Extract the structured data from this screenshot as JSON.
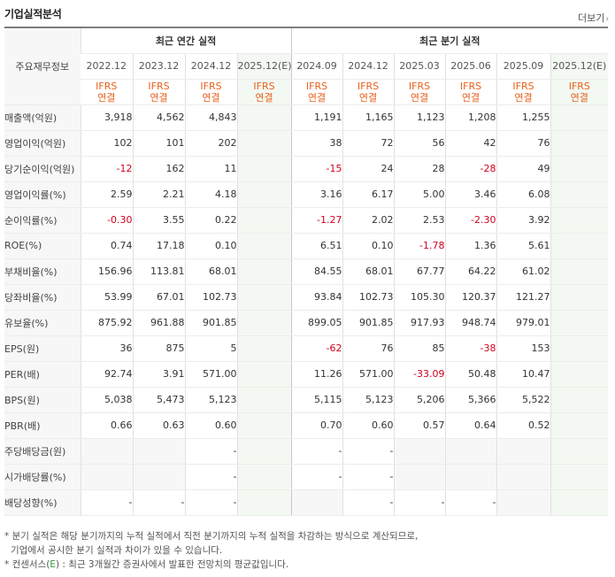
{
  "header": {
    "title": "기업실적분석",
    "more_label": "더보기",
    "more_arrow": "›"
  },
  "table": {
    "row_header_label": "주요재무정보",
    "group_annual": "최근 연간 실적",
    "group_quarter": "최근 분기 실적",
    "periods": [
      "2022.12",
      "2023.12",
      "2024.12",
      "2025.12(E)",
      "2024.09",
      "2024.12",
      "2025.03",
      "2025.06",
      "2025.09",
      "2025.12(E)"
    ],
    "ifrs_line1": "IFRS",
    "ifrs_line2": "연결",
    "rows": [
      {
        "label": "매출액(억원)",
        "values": [
          "3,918",
          "4,562",
          "4,843",
          "",
          "1,191",
          "1,165",
          "1,123",
          "1,208",
          "1,255",
          ""
        ]
      },
      {
        "label": "영업이익(억원)",
        "values": [
          "102",
          "101",
          "202",
          "",
          "38",
          "72",
          "56",
          "42",
          "76",
          ""
        ]
      },
      {
        "label": "당기순이익(억원)",
        "values": [
          "-12",
          "162",
          "11",
          "",
          "-15",
          "24",
          "28",
          "-28",
          "49",
          ""
        ]
      },
      {
        "label": "영업이익률(%)",
        "values": [
          "2.59",
          "2.21",
          "4.18",
          "",
          "3.16",
          "6.17",
          "5.00",
          "3.46",
          "6.08",
          ""
        ]
      },
      {
        "label": "순이익률(%)",
        "values": [
          "-0.30",
          "3.55",
          "0.22",
          "",
          "-1.27",
          "2.02",
          "2.53",
          "-2.30",
          "3.92",
          ""
        ]
      },
      {
        "label": "ROE(%)",
        "values": [
          "0.74",
          "17.18",
          "0.10",
          "",
          "6.51",
          "0.10",
          "-1.78",
          "1.36",
          "5.61",
          ""
        ]
      },
      {
        "label": "부채비율(%)",
        "values": [
          "156.96",
          "113.81",
          "68.01",
          "",
          "84.55",
          "68.01",
          "67.77",
          "64.22",
          "61.02",
          ""
        ]
      },
      {
        "label": "당좌비율(%)",
        "values": [
          "53.99",
          "67.01",
          "102.73",
          "",
          "93.84",
          "102.73",
          "105.30",
          "120.37",
          "121.27",
          ""
        ]
      },
      {
        "label": "유보율(%)",
        "values": [
          "875.92",
          "961.88",
          "901.85",
          "",
          "899.05",
          "901.85",
          "917.93",
          "948.74",
          "979.01",
          ""
        ]
      },
      {
        "label": "EPS(원)",
        "values": [
          "36",
          "875",
          "5",
          "",
          "-62",
          "76",
          "85",
          "-38",
          "153",
          ""
        ]
      },
      {
        "label": "PER(배)",
        "values": [
          "92.74",
          "3.91",
          "571.00",
          "",
          "11.26",
          "571.00",
          "-33.09",
          "50.48",
          "10.47",
          ""
        ]
      },
      {
        "label": "BPS(원)",
        "values": [
          "5,038",
          "5,473",
          "5,123",
          "",
          "5,115",
          "5,123",
          "5,206",
          "5,366",
          "5,522",
          ""
        ]
      },
      {
        "label": "PBR(배)",
        "values": [
          "0.66",
          "0.63",
          "0.60",
          "",
          "0.70",
          "0.60",
          "0.57",
          "0.64",
          "0.52",
          ""
        ]
      },
      {
        "label": "주당배당금(원)",
        "values": [
          "",
          "",
          "-",
          "",
          "-",
          "-",
          "",
          "",
          "",
          ""
        ]
      },
      {
        "label": "시가배당률(%)",
        "values": [
          "",
          "",
          "-",
          "",
          "-",
          "-",
          "",
          "",
          "",
          ""
        ]
      },
      {
        "label": "배당성향(%)",
        "values": [
          "-",
          "-",
          "-",
          "",
          "",
          "-",
          "-",
          "-",
          "",
          ""
        ]
      }
    ]
  },
  "notes": {
    "line1": "* 분기 실적은 해당 분기까지의 누적 실적에서 직전 분기까지의 누적 실적을 차감하는 방식으로 계산되므로,",
    "line2": "기업에서 공시한 분기 실적과 차이가 있을 수 있습니다.",
    "line3_pre": "* 컨센서스(",
    "line3_e": "E",
    "line3_post": ") : 최근 3개월간 증권사에서 발표한 전망치의 평균값입니다."
  },
  "colors": {
    "negative": "#d1001f",
    "ifrs": "#e8601c",
    "estimate": "#2a9d3a",
    "estimate_bg": "#f3f9f2"
  }
}
